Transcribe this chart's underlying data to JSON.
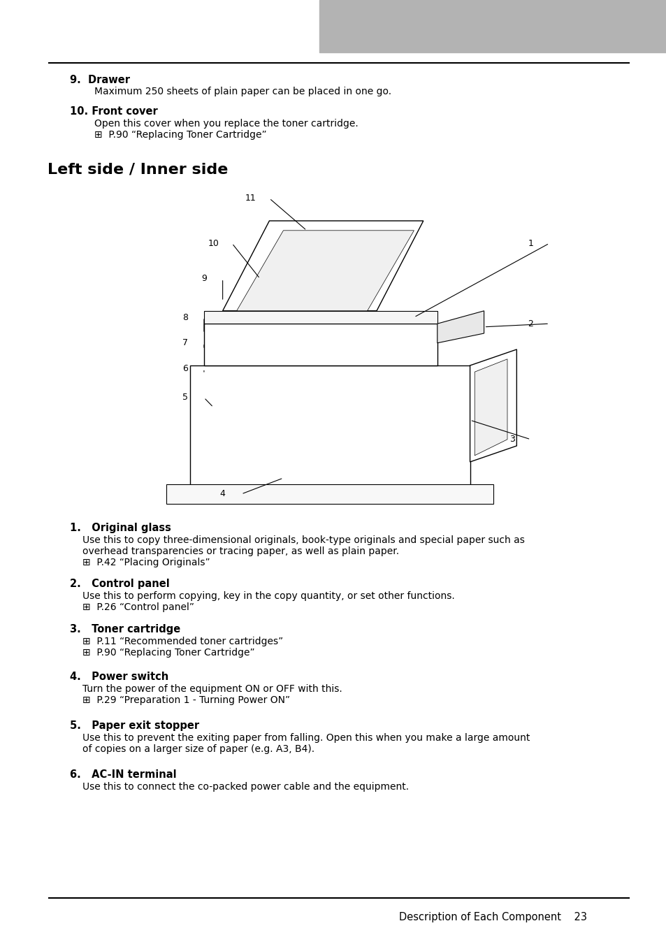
{
  "bg_color": "#ffffff",
  "header_rect_color": "#b3b3b3",
  "text_color": "#000000",
  "line_color": "#000000",
  "section_9_title": "9.  Drawer",
  "section_9_body": "Maximum 250 sheets of plain paper can be placed in one go.",
  "section_10_title": "10. Front cover",
  "section_10_body1": "Open this cover when you replace the toner cartridge.",
  "section_10_body2": "⊞  P.90 “Replacing Toner Cartridge”",
  "section_heading": "Left side / Inner side",
  "section_1_title": "1.   Original glass",
  "section_1_body1": "Use this to copy three-dimensional originals, book-type originals and special paper such as",
  "section_1_body2": "overhead transparencies or tracing paper, as well as plain paper.",
  "section_1_body3": "⊞  P.42 “Placing Originals”",
  "section_2_title": "2.   Control panel",
  "section_2_body1": "Use this to perform copying, key in the copy quantity, or set other functions.",
  "section_2_body2": "⊞  P.26 “Control panel”",
  "section_3_title": "3.   Toner cartridge",
  "section_3_body1": "⊞  P.11 “Recommended toner cartridges”",
  "section_3_body2": "⊞  P.90 “Replacing Toner Cartridge”",
  "section_4_title": "4.   Power switch",
  "section_4_body1": "Turn the power of the equipment ON or OFF with this.",
  "section_4_body2": "⊞  P.29 “Preparation 1 - Turning Power ON”",
  "section_5_title": "5.   Paper exit stopper",
  "section_5_body1": "Use this to prevent the exiting paper from falling. Open this when you make a large amount",
  "section_5_body2": "of copies on a larger size of paper (e.g. A3, B4).",
  "section_6_title": "6.   AC-IN terminal",
  "section_6_body1": "Use this to connect the co-packed power cable and the equipment.",
  "footer_text": "Description of Each Component    23"
}
